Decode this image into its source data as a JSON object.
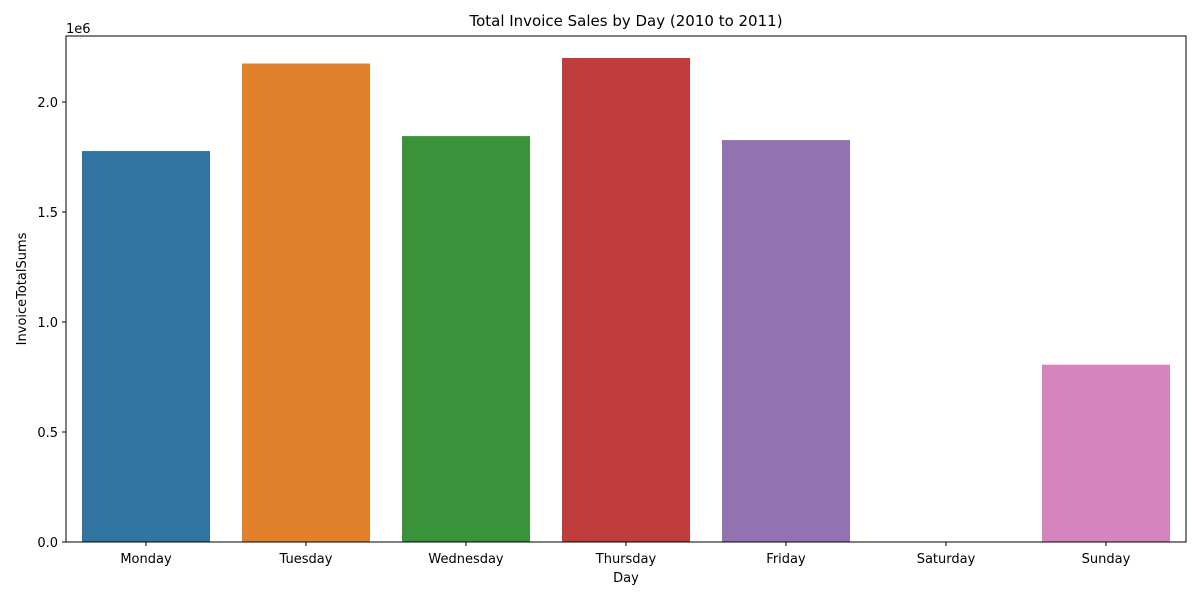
{
  "chart_data": {
    "type": "bar",
    "title": "Total Invoice Sales by Day (2010 to 2011)",
    "xlabel": "Day",
    "ylabel": "InvoiceTotalSums",
    "offset_label": "1e6",
    "categories": [
      "Monday",
      "Tuesday",
      "Wednesday",
      "Thursday",
      "Friday",
      "Saturday",
      "Sunday"
    ],
    "values": [
      1777000,
      2175000,
      1845000,
      2200000,
      1827000,
      0,
      806000
    ],
    "colors": [
      "#3274a1",
      "#e1812c",
      "#3a923a",
      "#c03d3e",
      "#9372b2",
      "#845b53",
      "#d684bd"
    ],
    "ylim": [
      0,
      2300000
    ],
    "yticks": [
      0,
      500000,
      1000000,
      1500000,
      2000000
    ],
    "ytick_labels": [
      "0.0",
      "0.5",
      "1.0",
      "1.5",
      "2.0"
    ],
    "grid": false,
    "legend": "none"
  }
}
